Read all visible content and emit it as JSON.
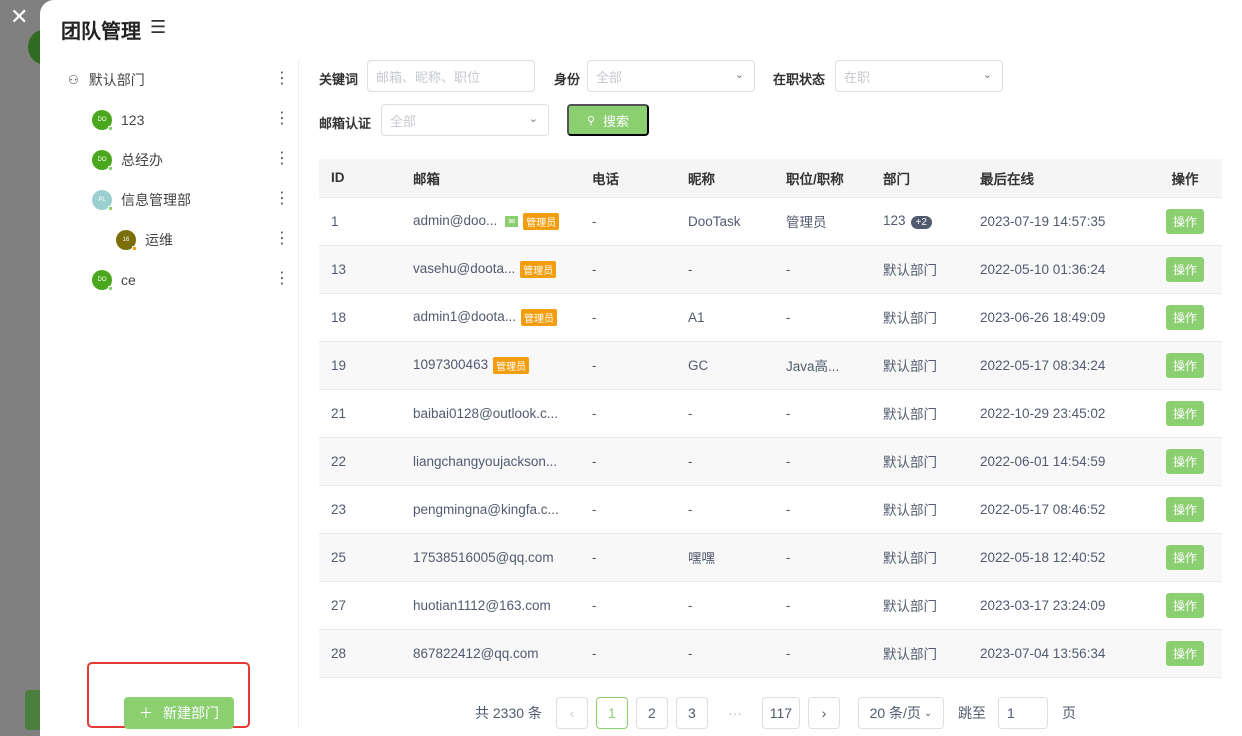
{
  "title": "团队管理",
  "tree": [
    {
      "name": "默认部门",
      "type": "root"
    },
    {
      "name": "123",
      "avatar": "DO",
      "color": "#4aa71e",
      "level": 1
    },
    {
      "name": "总经办",
      "avatar": "DO",
      "color": "#4aa71e",
      "level": 1
    },
    {
      "name": "信息管理部",
      "avatar": "PL",
      "color": "#9ccfd0",
      "level": 1
    },
    {
      "name": "运维",
      "avatar": "16",
      "color": "#7a6f0a",
      "level": 2
    },
    {
      "name": "ce",
      "avatar": "DO",
      "color": "#4aa71e",
      "level": 1
    }
  ],
  "new_dept": "新建部门",
  "filters": {
    "keyword_label": "关键词",
    "keyword_placeholder": "邮箱、昵称、职位",
    "identity_label": "身份",
    "identity_value": "全部",
    "status_label": "在职状态",
    "status_value": "在职",
    "email_label": "邮箱认证",
    "email_value": "全部",
    "search": "搜索"
  },
  "columns": [
    "ID",
    "邮箱",
    "电话",
    "昵称",
    "职位/职称",
    "部门",
    "最后在线",
    "操作"
  ],
  "admin_badge": "管理员",
  "op_label": "操作",
  "rows": [
    {
      "id": "1",
      "email": "admin@doo...",
      "verified": true,
      "admin": true,
      "phone": "-",
      "nick": "DooTask",
      "title": "管理员",
      "dept": "123",
      "extra": "+2",
      "last": "2023-07-19 14:57:35"
    },
    {
      "id": "13",
      "email": "vasehu@doota...",
      "admin": true,
      "phone": "-",
      "nick": "-",
      "title": "-",
      "dept": "默认部门",
      "last": "2022-05-10 01:36:24"
    },
    {
      "id": "18",
      "email": "admin1@doota...",
      "admin": true,
      "phone": "-",
      "nick": "A1",
      "title": "-",
      "dept": "默认部门",
      "last": "2023-06-26 18:49:09"
    },
    {
      "id": "19",
      "email": "1097300463",
      "admin": true,
      "phone": "-",
      "nick": "GC",
      "title": "Java高...",
      "dept": "默认部门",
      "last": "2022-05-17 08:34:24"
    },
    {
      "id": "21",
      "email": "baibai0128@outlook.c...",
      "phone": "-",
      "nick": "-",
      "title": "-",
      "dept": "默认部门",
      "last": "2022-10-29 23:45:02"
    },
    {
      "id": "22",
      "email": "liangchangyoujackson...",
      "phone": "-",
      "nick": "-",
      "title": "-",
      "dept": "默认部门",
      "last": "2022-06-01 14:54:59"
    },
    {
      "id": "23",
      "email": "pengmingna@kingfa.c...",
      "phone": "-",
      "nick": "-",
      "title": "-",
      "dept": "默认部门",
      "last": "2022-05-17 08:46:52"
    },
    {
      "id": "25",
      "email": "17538516005@qq.com",
      "phone": "-",
      "nick": "嘿嘿",
      "title": "-",
      "dept": "默认部门",
      "last": "2022-05-18 12:40:52"
    },
    {
      "id": "27",
      "email": "huotian1112@163.com",
      "phone": "-",
      "nick": "-",
      "title": "-",
      "dept": "默认部门",
      "last": "2023-03-17 23:24:09"
    },
    {
      "id": "28",
      "email": "867822412@qq.com",
      "phone": "-",
      "nick": "-",
      "title": "-",
      "dept": "默认部门",
      "last": "2023-07-04 13:56:34"
    }
  ],
  "pagination": {
    "total": "共 2330 条",
    "pages": [
      "1",
      "2",
      "3",
      "···",
      "117"
    ],
    "current": "1",
    "page_size": "20 条/页",
    "jump_label": "跳至",
    "jump_value": "1",
    "page_unit": "页"
  }
}
